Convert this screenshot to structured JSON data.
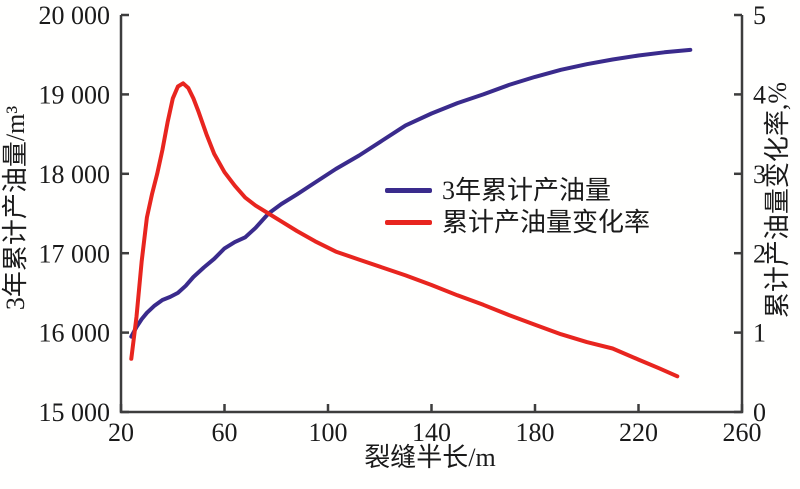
{
  "chart_data": {
    "type": "line",
    "title": "",
    "xlabel": "裂缝半长/m",
    "ylabel_left": "3年累计产油量/m³",
    "ylabel_right": "累计产油量变化率,%",
    "grid": false,
    "legend_position": "center-right-inside",
    "axis_color": "#3d3d3d",
    "text_color": "#1a1a1a",
    "x_axis": {
      "min": 20,
      "max": 260,
      "ticks": [
        20,
        60,
        100,
        140,
        180,
        220,
        260
      ],
      "tick_labels": [
        "20",
        "60",
        "100",
        "140",
        "180",
        "220",
        "260"
      ]
    },
    "y_axis_left": {
      "min": 15000,
      "max": 20000,
      "ticks": [
        15000,
        16000,
        17000,
        18000,
        19000,
        20000
      ],
      "tick_labels": [
        "15 000",
        "16 000",
        "17 000",
        "18 000",
        "19 000",
        "20 000"
      ]
    },
    "y_axis_right": {
      "min": 0,
      "max": 5,
      "ticks": [
        0,
        1,
        2,
        3,
        4,
        5
      ],
      "tick_labels": [
        "0",
        "1",
        "2",
        "3",
        "4",
        "5"
      ]
    },
    "series": [
      {
        "name": "3年累计产油量",
        "axis": "left",
        "color": "#3a2b8c",
        "points": [
          [
            24,
            15950
          ],
          [
            26,
            16070
          ],
          [
            28,
            16170
          ],
          [
            30,
            16250
          ],
          [
            33,
            16340
          ],
          [
            36,
            16410
          ],
          [
            39,
            16450
          ],
          [
            42,
            16500
          ],
          [
            45,
            16590
          ],
          [
            48,
            16700
          ],
          [
            52,
            16820
          ],
          [
            56,
            16930
          ],
          [
            60,
            17060
          ],
          [
            64,
            17140
          ],
          [
            68,
            17200
          ],
          [
            72,
            17320
          ],
          [
            77,
            17500
          ],
          [
            82,
            17620
          ],
          [
            88,
            17740
          ],
          [
            95,
            17890
          ],
          [
            103,
            18060
          ],
          [
            112,
            18230
          ],
          [
            121,
            18420
          ],
          [
            130,
            18610
          ],
          [
            140,
            18760
          ],
          [
            150,
            18890
          ],
          [
            160,
            19000
          ],
          [
            170,
            19120
          ],
          [
            180,
            19220
          ],
          [
            190,
            19310
          ],
          [
            200,
            19380
          ],
          [
            210,
            19440
          ],
          [
            220,
            19490
          ],
          [
            230,
            19530
          ],
          [
            240,
            19560
          ]
        ]
      },
      {
        "name": "累计产油量变化率",
        "axis": "right",
        "color": "#e8251f",
        "points": [
          [
            24,
            0.67
          ],
          [
            26,
            1.2
          ],
          [
            28,
            1.9
          ],
          [
            30,
            2.45
          ],
          [
            32,
            2.75
          ],
          [
            34,
            3.0
          ],
          [
            36,
            3.3
          ],
          [
            38,
            3.65
          ],
          [
            40,
            3.95
          ],
          [
            42,
            4.1
          ],
          [
            44,
            4.14
          ],
          [
            46,
            4.08
          ],
          [
            48,
            3.95
          ],
          [
            50,
            3.78
          ],
          [
            53,
            3.5
          ],
          [
            56,
            3.25
          ],
          [
            60,
            3.02
          ],
          [
            64,
            2.85
          ],
          [
            68,
            2.7
          ],
          [
            72,
            2.6
          ],
          [
            77,
            2.5
          ],
          [
            82,
            2.4
          ],
          [
            88,
            2.28
          ],
          [
            95,
            2.15
          ],
          [
            103,
            2.02
          ],
          [
            112,
            1.92
          ],
          [
            121,
            1.82
          ],
          [
            130,
            1.72
          ],
          [
            140,
            1.6
          ],
          [
            150,
            1.47
          ],
          [
            160,
            1.35
          ],
          [
            170,
            1.22
          ],
          [
            180,
            1.1
          ],
          [
            190,
            0.98
          ],
          [
            200,
            0.88
          ],
          [
            210,
            0.8
          ],
          [
            220,
            0.66
          ],
          [
            228,
            0.55
          ],
          [
            235,
            0.45
          ]
        ]
      }
    ]
  }
}
